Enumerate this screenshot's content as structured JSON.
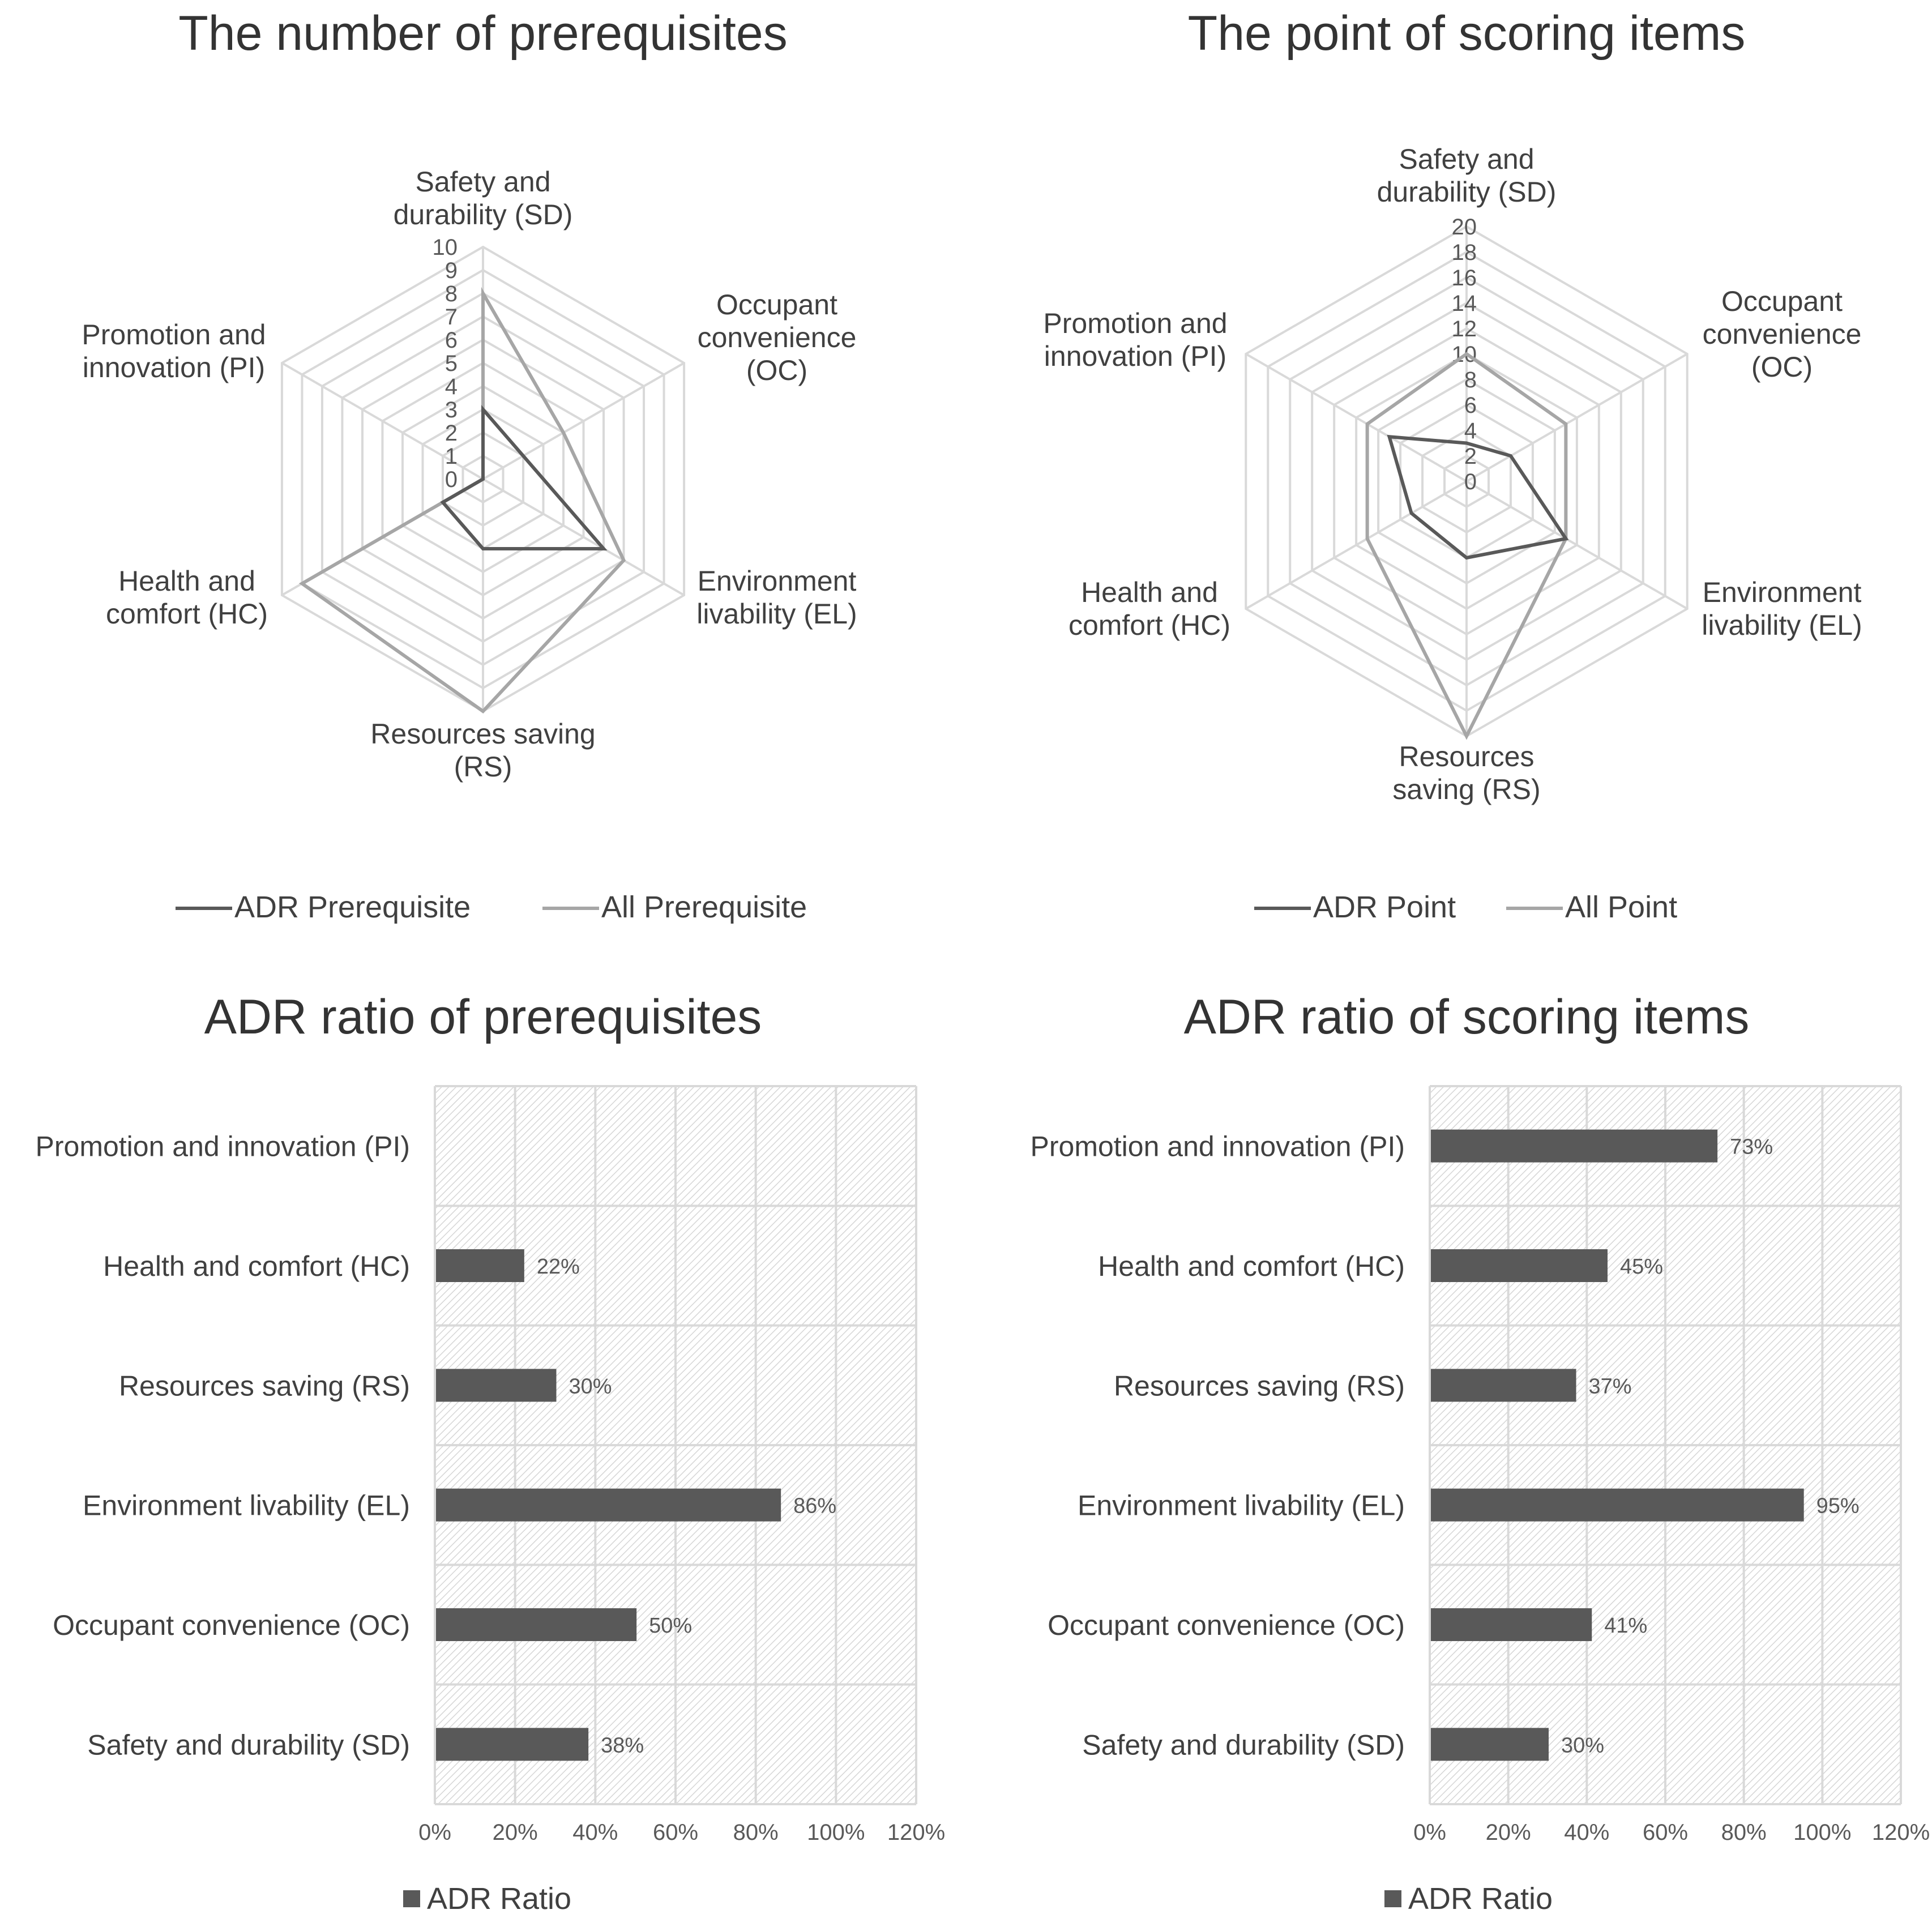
{
  "chart_data": [
    {
      "id": "radar1",
      "type": "radar",
      "title": "The number of prerequisites",
      "axes": [
        {
          "label": [
            "Safety and",
            "durability (SD)"
          ]
        },
        {
          "label": [
            "Occupant",
            "convenience",
            "(OC)"
          ]
        },
        {
          "label": [
            "Environment",
            "livability (EL)"
          ]
        },
        {
          "label": [
            "Resources saving",
            "(RS)"
          ]
        },
        {
          "label": [
            "Health and",
            "comfort (HC)"
          ]
        },
        {
          "label": [
            "Promotion and",
            "innovation (PI)"
          ]
        }
      ],
      "rmax": 10,
      "rings": 10,
      "ticks": [
        "0",
        "1",
        "2",
        "3",
        "4",
        "5",
        "6",
        "7",
        "8",
        "9",
        "10"
      ],
      "series": [
        {
          "name": "ADR Prerequisite",
          "color": "#595959",
          "values": [
            3,
            2,
            6,
            3,
            2,
            0
          ]
        },
        {
          "name": "All Prerequisite",
          "color": "#a6a6a6",
          "values": [
            8,
            4,
            7,
            10,
            9,
            0
          ]
        }
      ]
    },
    {
      "id": "radar2",
      "type": "radar",
      "title": "The point of scoring items",
      "axes": [
        {
          "label": [
            "Safety and",
            "durability (SD)"
          ]
        },
        {
          "label": [
            "Occupant",
            "convenience",
            "(OC)"
          ]
        },
        {
          "label": [
            "Environment",
            "livability (EL)"
          ]
        },
        {
          "label": [
            "Resources",
            "saving (RS)"
          ]
        },
        {
          "label": [
            "Health and",
            "comfort (HC)"
          ]
        },
        {
          "label": [
            "Promotion and",
            "innovation (PI)"
          ]
        }
      ],
      "rmax": 20,
      "rings": 10,
      "ticks": [
        "0",
        "2",
        "4",
        "6",
        "8",
        "10",
        "12",
        "14",
        "16",
        "18",
        "20"
      ],
      "series": [
        {
          "name": "ADR Point",
          "color": "#595959",
          "values": [
            3,
            4,
            9,
            6,
            5,
            7
          ]
        },
        {
          "name": "All Point",
          "color": "#a6a6a6",
          "values": [
            10,
            9,
            9,
            20,
            9,
            9
          ]
        }
      ]
    },
    {
      "id": "bar1",
      "type": "bar",
      "title": "ADR ratio of prerequisites",
      "categories": [
        "Promotion and innovation (PI)",
        "Health and comfort (HC)",
        "Resources saving (RS)",
        "Environment livability (EL)",
        "Occupant convenience  (OC)",
        "Safety and durability (SD)"
      ],
      "values": [
        null,
        0.22,
        0.3,
        0.86,
        0.5,
        0.38
      ],
      "value_labels": [
        "",
        "22%",
        "30%",
        "86%",
        "50%",
        "38%"
      ],
      "xticks": [
        "0%",
        "20%",
        "40%",
        "60%",
        "80%",
        "100%",
        "120%"
      ],
      "xlim": [
        0,
        1.2
      ],
      "series_name": "ADR Ratio",
      "color": "#595959"
    },
    {
      "id": "bar2",
      "type": "bar",
      "title": "ADR ratio of scoring items",
      "categories": [
        "Promotion and innovation (PI)",
        "Health and comfort (HC)",
        "Resources saving (RS)",
        "Environment livability (EL)",
        "Occupant convenience  (OC)",
        "Safety and durability (SD)"
      ],
      "values": [
        0.73,
        0.45,
        0.37,
        0.95,
        0.41,
        0.3
      ],
      "value_labels": [
        "73%",
        "45%",
        "37%",
        "95%",
        "41%",
        "30%"
      ],
      "xticks": [
        "0%",
        "20%",
        "40%",
        "60%",
        "80%",
        "100%",
        "120%"
      ],
      "xlim": [
        0,
        1.2
      ],
      "series_name": "ADR Ratio",
      "color": "#595959"
    }
  ]
}
